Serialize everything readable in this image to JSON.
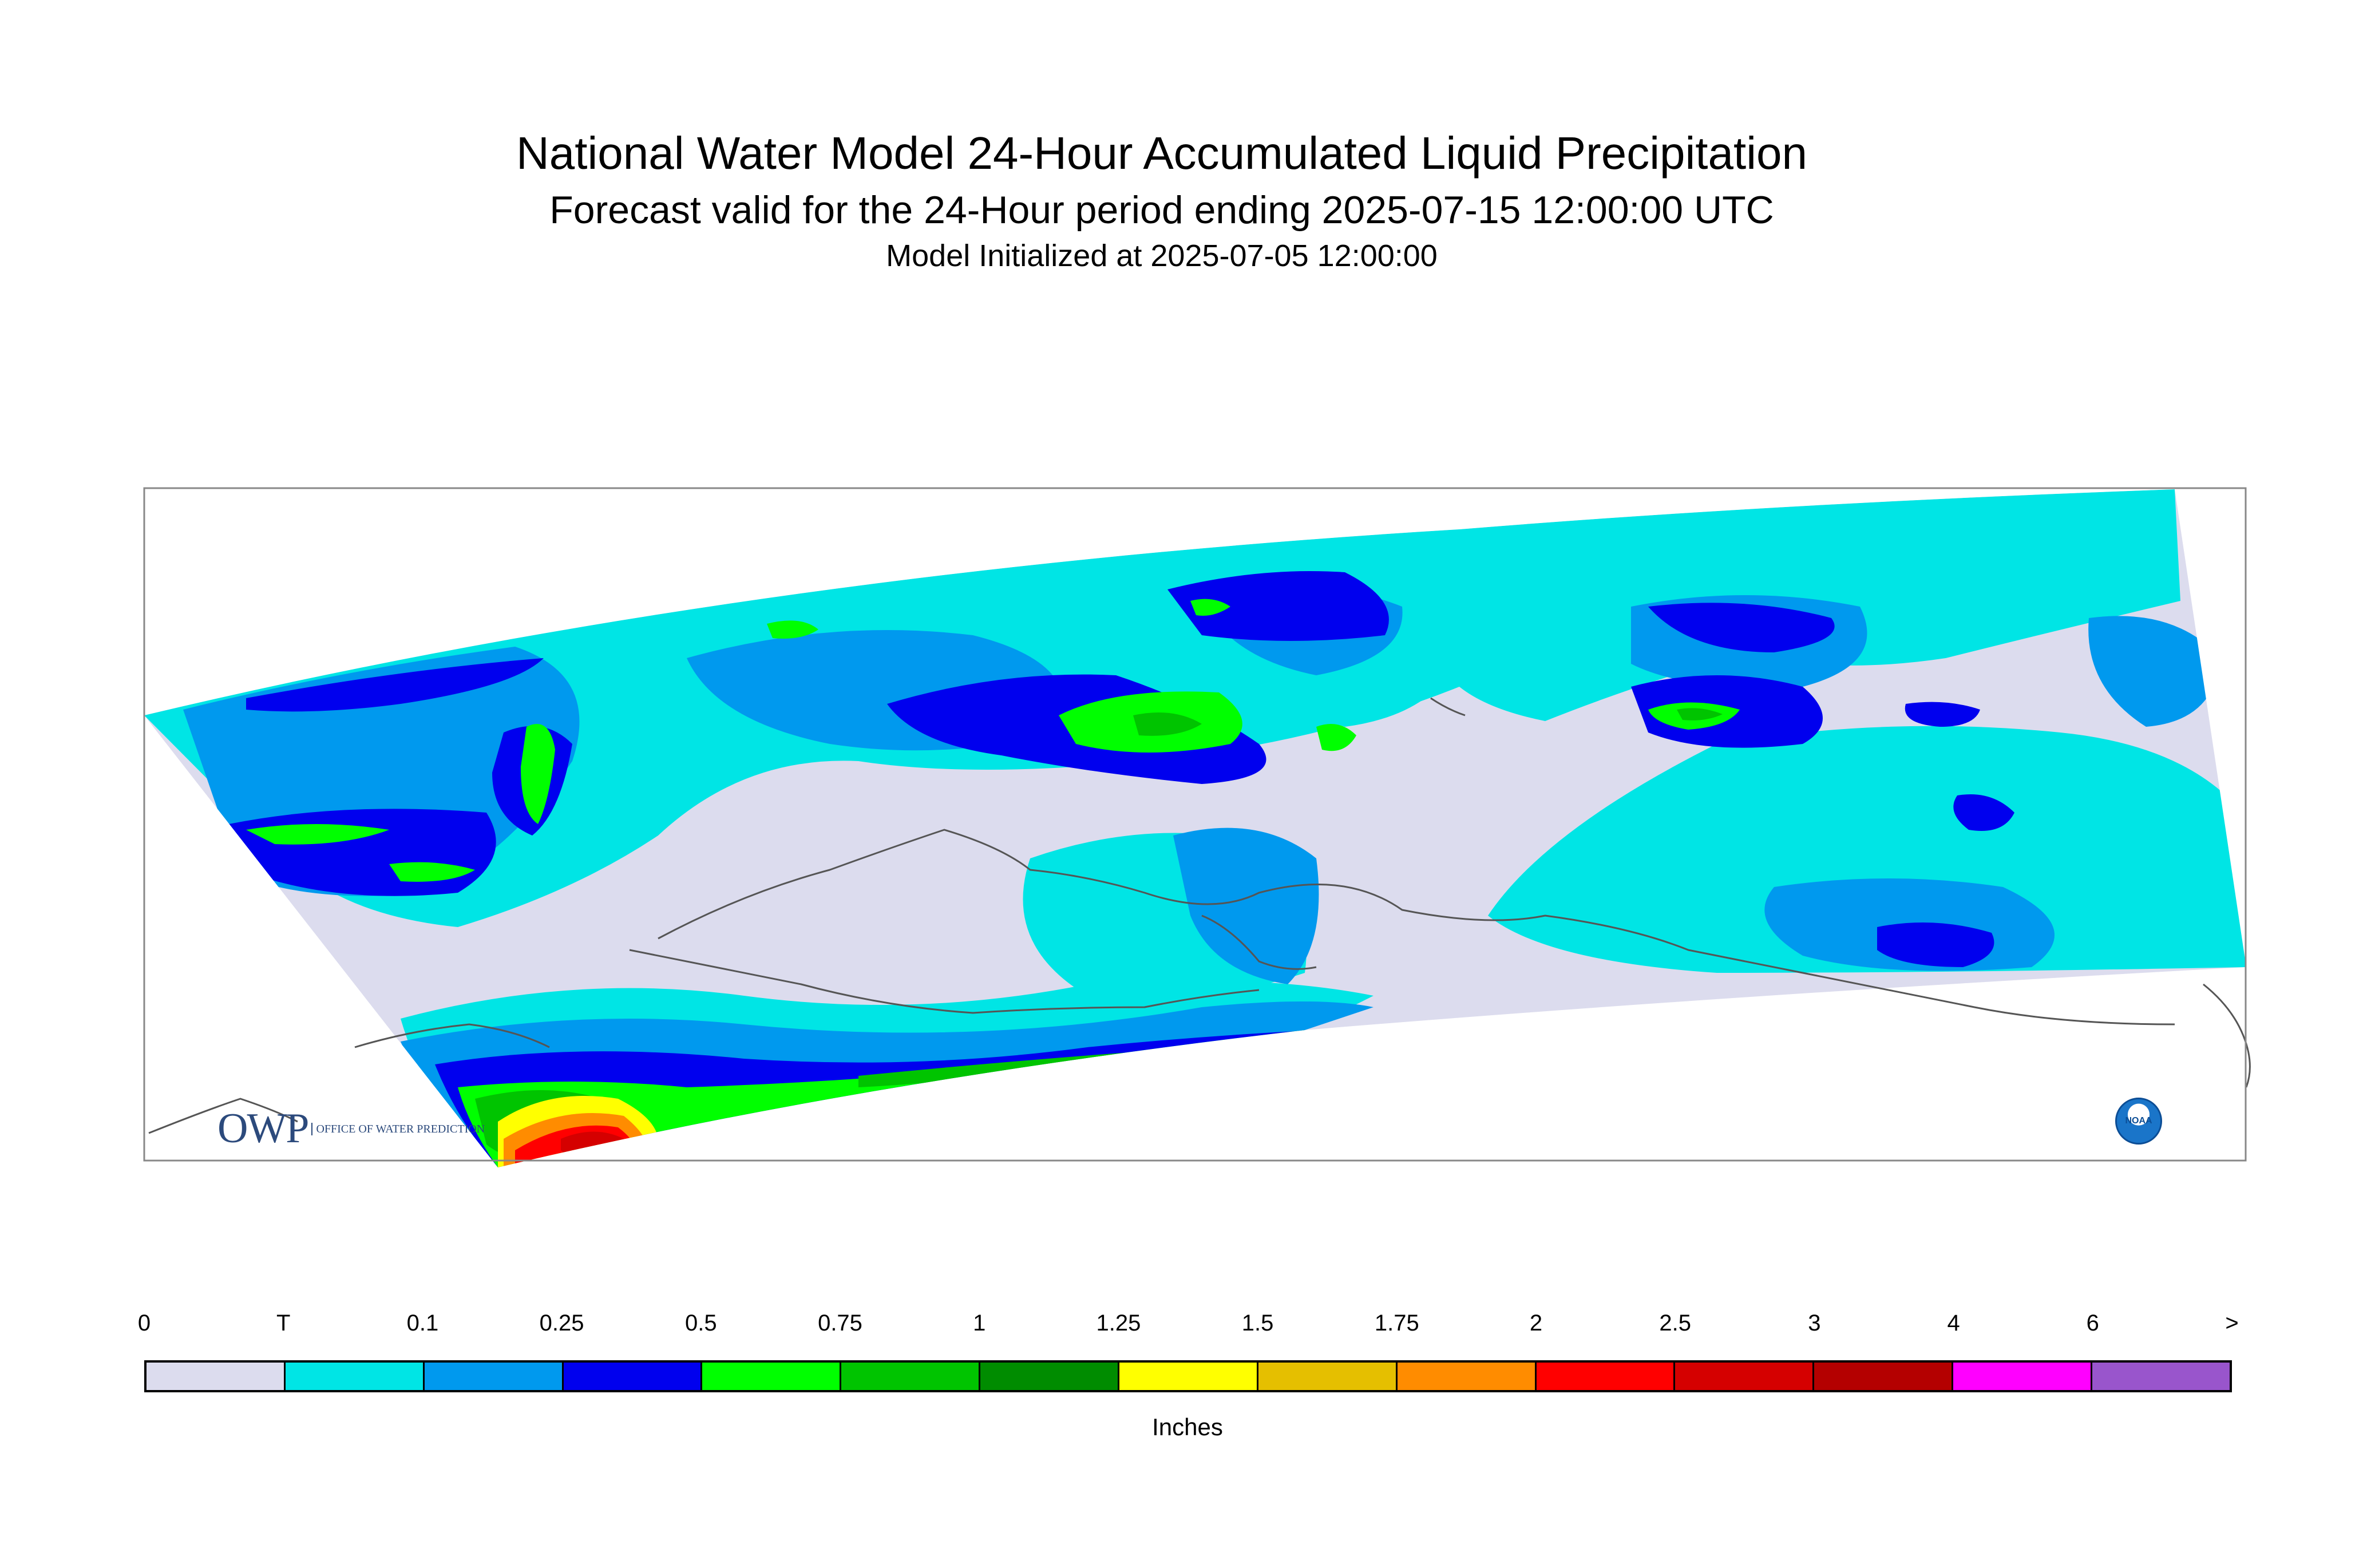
{
  "title": {
    "line1": "National Water Model 24-Hour Accumulated Liquid Precipitation",
    "line2": "Forecast valid for the 24-Hour period ending 2025-07-15 12:00:00 UTC",
    "line3": "Model Initialized at 2025-07-05 12:00:00"
  },
  "logos": {
    "owp_big": "OWP",
    "owp_small": "OFFICE OF WATER PREDICTION",
    "noaa": "NOAA"
  },
  "legend": {
    "units": "Inches",
    "labels": [
      "0",
      "T",
      "0.1",
      "0.25",
      "0.5",
      "0.75",
      "1",
      "1.25",
      "1.5",
      "1.75",
      "2",
      "2.5",
      "3",
      "4",
      "6",
      ">"
    ],
    "colors": [
      "#dcdcee",
      "#00e5e5",
      "#0099ee",
      "#0000ee",
      "#00ff00",
      "#00c400",
      "#008c00",
      "#ffff00",
      "#e5bf00",
      "#ff8c00",
      "#ff0000",
      "#d50000",
      "#b40000",
      "#ff00ff",
      "#9955cc"
    ]
  },
  "map": {
    "background_color": "#ffffff",
    "no_precip_color": "#dcdcee",
    "coastline_color": "#555555",
    "frame_color": "#888888"
  }
}
